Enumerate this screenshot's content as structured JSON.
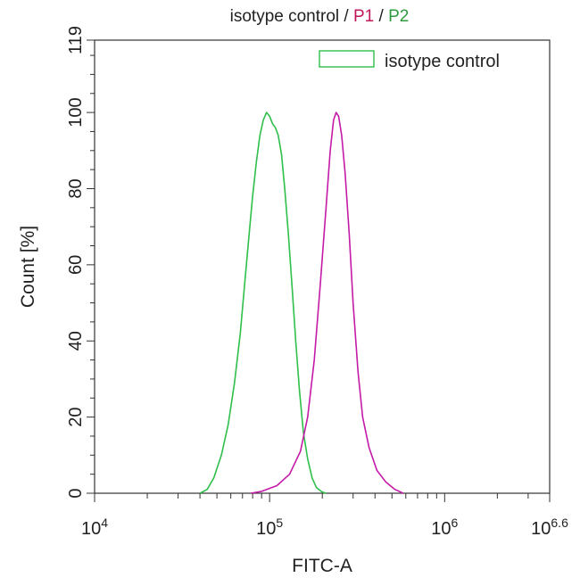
{
  "chart_data": {
    "type": "line",
    "title_parts": [
      {
        "text": "isotype control",
        "color": "#222222"
      },
      {
        "text": " / ",
        "color": "#222222"
      },
      {
        "text": "P1",
        "color": "#c0185a"
      },
      {
        "text": " / ",
        "color": "#222222"
      },
      {
        "text": "P2",
        "color": "#2f9a3e"
      }
    ],
    "xlabel": "FITC-A",
    "ylabel": "Count  [%]",
    "x_scale": "log",
    "xlim": [
      10000,
      3981071
    ],
    "ylim": [
      0,
      119
    ],
    "x_ticks": [
      {
        "value": 10000,
        "base": "10",
        "exp": "4"
      },
      {
        "value": 100000,
        "base": "10",
        "exp": "5"
      },
      {
        "value": 1000000,
        "base": "10",
        "exp": "6"
      },
      {
        "value": 3981071,
        "base": "10",
        "exp": "6.6"
      }
    ],
    "y_ticks": [
      "0",
      "20",
      "40",
      "60",
      "80",
      "100",
      "119"
    ],
    "legend": {
      "entries": [
        {
          "label": "isotype control",
          "color": "#2fbf4a"
        }
      ],
      "placement": "top-right"
    },
    "grid": false,
    "series": [
      {
        "name": "isotype control",
        "color": "#2fbf4a",
        "points": [
          [
            40000,
            0
          ],
          [
            44000,
            1
          ],
          [
            48000,
            4
          ],
          [
            53000,
            10
          ],
          [
            58000,
            18
          ],
          [
            63000,
            29
          ],
          [
            68000,
            42
          ],
          [
            72000,
            55
          ],
          [
            76000,
            67
          ],
          [
            80000,
            78
          ],
          [
            84000,
            87
          ],
          [
            88000,
            94
          ],
          [
            92000,
            98
          ],
          [
            96000,
            100
          ],
          [
            100000,
            99
          ],
          [
            104000,
            97
          ],
          [
            108000,
            96
          ],
          [
            112000,
            94
          ],
          [
            117000,
            89
          ],
          [
            122000,
            80
          ],
          [
            128000,
            68
          ],
          [
            134000,
            55
          ],
          [
            141000,
            40
          ],
          [
            148000,
            27
          ],
          [
            156000,
            16
          ],
          [
            165000,
            9
          ],
          [
            175000,
            4
          ],
          [
            185000,
            1.5
          ],
          [
            200000,
            0.3
          ],
          [
            210000,
            0
          ]
        ]
      },
      {
        "name": "",
        "color": "#c41aa8",
        "points": [
          [
            78000,
            0
          ],
          [
            90000,
            0.5
          ],
          [
            110000,
            2
          ],
          [
            130000,
            5
          ],
          [
            150000,
            11
          ],
          [
            165000,
            20
          ],
          [
            180000,
            35
          ],
          [
            195000,
            55
          ],
          [
            210000,
            75
          ],
          [
            222000,
            90
          ],
          [
            232000,
            98
          ],
          [
            240000,
            100
          ],
          [
            248000,
            99
          ],
          [
            258000,
            94
          ],
          [
            270000,
            84
          ],
          [
            285000,
            68
          ],
          [
            300000,
            50
          ],
          [
            320000,
            32
          ],
          [
            340000,
            20
          ],
          [
            370000,
            12
          ],
          [
            410000,
            6
          ],
          [
            460000,
            3
          ],
          [
            520000,
            1
          ],
          [
            580000,
            0
          ]
        ]
      }
    ]
  }
}
